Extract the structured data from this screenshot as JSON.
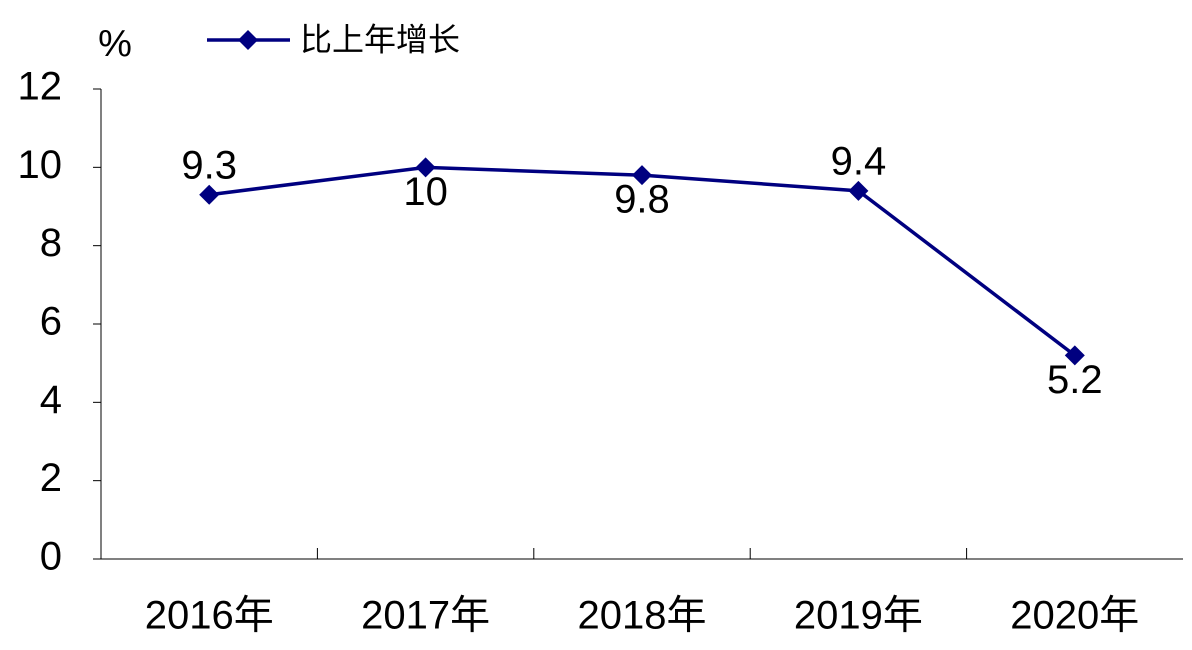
{
  "chart_data": {
    "type": "line",
    "y_axis_label": "%",
    "categories": [
      "2016年",
      "2017年",
      "2018年",
      "2019年",
      "2020年"
    ],
    "series": [
      {
        "name": "比上年增长",
        "color": "#000080",
        "values": [
          9.3,
          10,
          9.8,
          9.4,
          5.2
        ]
      }
    ],
    "ylim": [
      0,
      12
    ],
    "yticks": [
      0,
      2,
      4,
      6,
      8,
      10,
      12
    ],
    "legend": "top"
  }
}
